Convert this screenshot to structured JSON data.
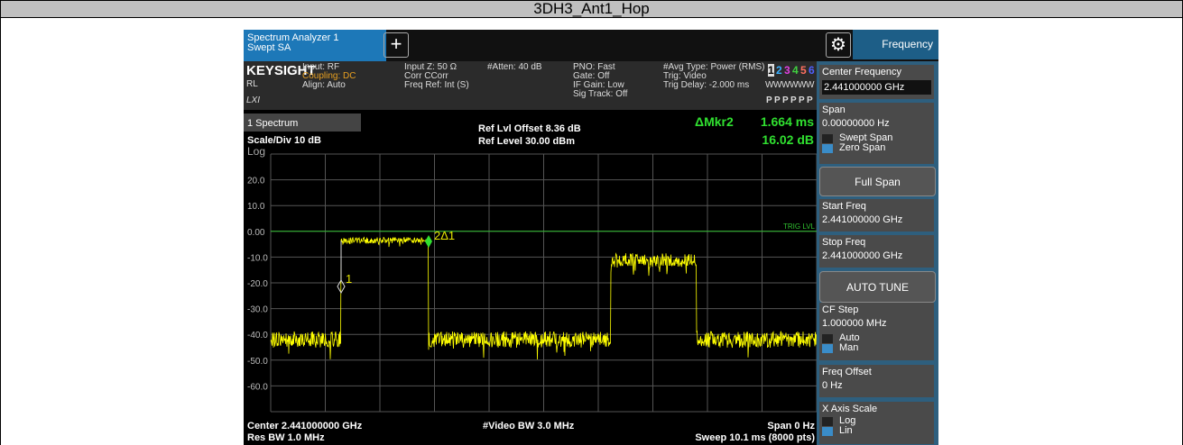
{
  "title": "3DH3_Ant1_Hop",
  "tabs": {
    "app": "Spectrum Analyzer 1",
    "mode": "Swept SA",
    "panel": "Frequency"
  },
  "info": {
    "brand": "KEYSIGHT",
    "rl": "RL",
    "lxi": "LXI",
    "input": "Input: RF",
    "coupling": "Coupling: DC",
    "align": "Align: Auto",
    "input_z": "Input Z: 50 Ω",
    "corr": "Corr CCorr",
    "freq_ref": "Freq Ref: Int (S)",
    "atten": "#Atten: 40 dB",
    "pno": "PNO: Fast",
    "gate": "Gate: Off",
    "if_gain": "IF Gain: Low",
    "sig_track": "Sig Track: Off",
    "avg_type": "#Avg Type: Power (RMS)",
    "trig": "Trig: Video",
    "trig_delay": "Trig Delay: -2.000 ms",
    "traces": [
      "1",
      "2",
      "3",
      "4",
      "5",
      "6"
    ],
    "trace_modes": [
      "W",
      "W",
      "W",
      "W",
      "W",
      "W"
    ],
    "detectors": [
      "P",
      "P",
      "P",
      "P",
      "P",
      "P"
    ]
  },
  "plot": {
    "window": "1 Spectrum",
    "scale": "Scale/Div 10 dB",
    "log": "Log",
    "ref_offset": "Ref Lvl Offset 8.36 dB",
    "ref_level": "Ref Level 30.00 dBm",
    "marker_label": "ΔMkr2",
    "marker_x": "1.664 ms",
    "marker_y": "16.02 dB",
    "y_labels": [
      "20.0",
      "10.0",
      "0.00",
      "-10.0",
      "-20.0",
      "-30.0",
      "-40.0",
      "-50.0",
      "-60.0"
    ],
    "trig_lvl": "TRIG LVL",
    "markers": [
      "1",
      "2Δ1"
    ],
    "footer": {
      "center": "Center 2.441000000 GHz",
      "res_bw": "Res BW 1.0 MHz",
      "video_bw": "#Video BW 3.0 MHz",
      "span": "Span 0 Hz",
      "sweep": "Sweep 10.1 ms (8000 pts)"
    }
  },
  "menu": [
    {
      "label": "Center Frequency",
      "value": "2.441000000 GHz"
    },
    {
      "label": "Span",
      "value": "0.00000000 Hz",
      "options": [
        "Swept Span",
        "Zero Span"
      ]
    },
    {
      "button": "Full Span"
    },
    {
      "label": "Start Freq",
      "value": "2.441000000 GHz"
    },
    {
      "label": "Stop Freq",
      "value": "2.441000000 GHz"
    },
    {
      "button": "AUTO TUNE"
    },
    {
      "label": "CF Step",
      "value": "1.000000 MHz",
      "options": [
        "Auto",
        "Man"
      ]
    },
    {
      "label": "Freq Offset",
      "value": "0 Hz"
    },
    {
      "label": "X Axis Scale",
      "options": [
        "Log",
        "Lin"
      ]
    }
  ]
}
